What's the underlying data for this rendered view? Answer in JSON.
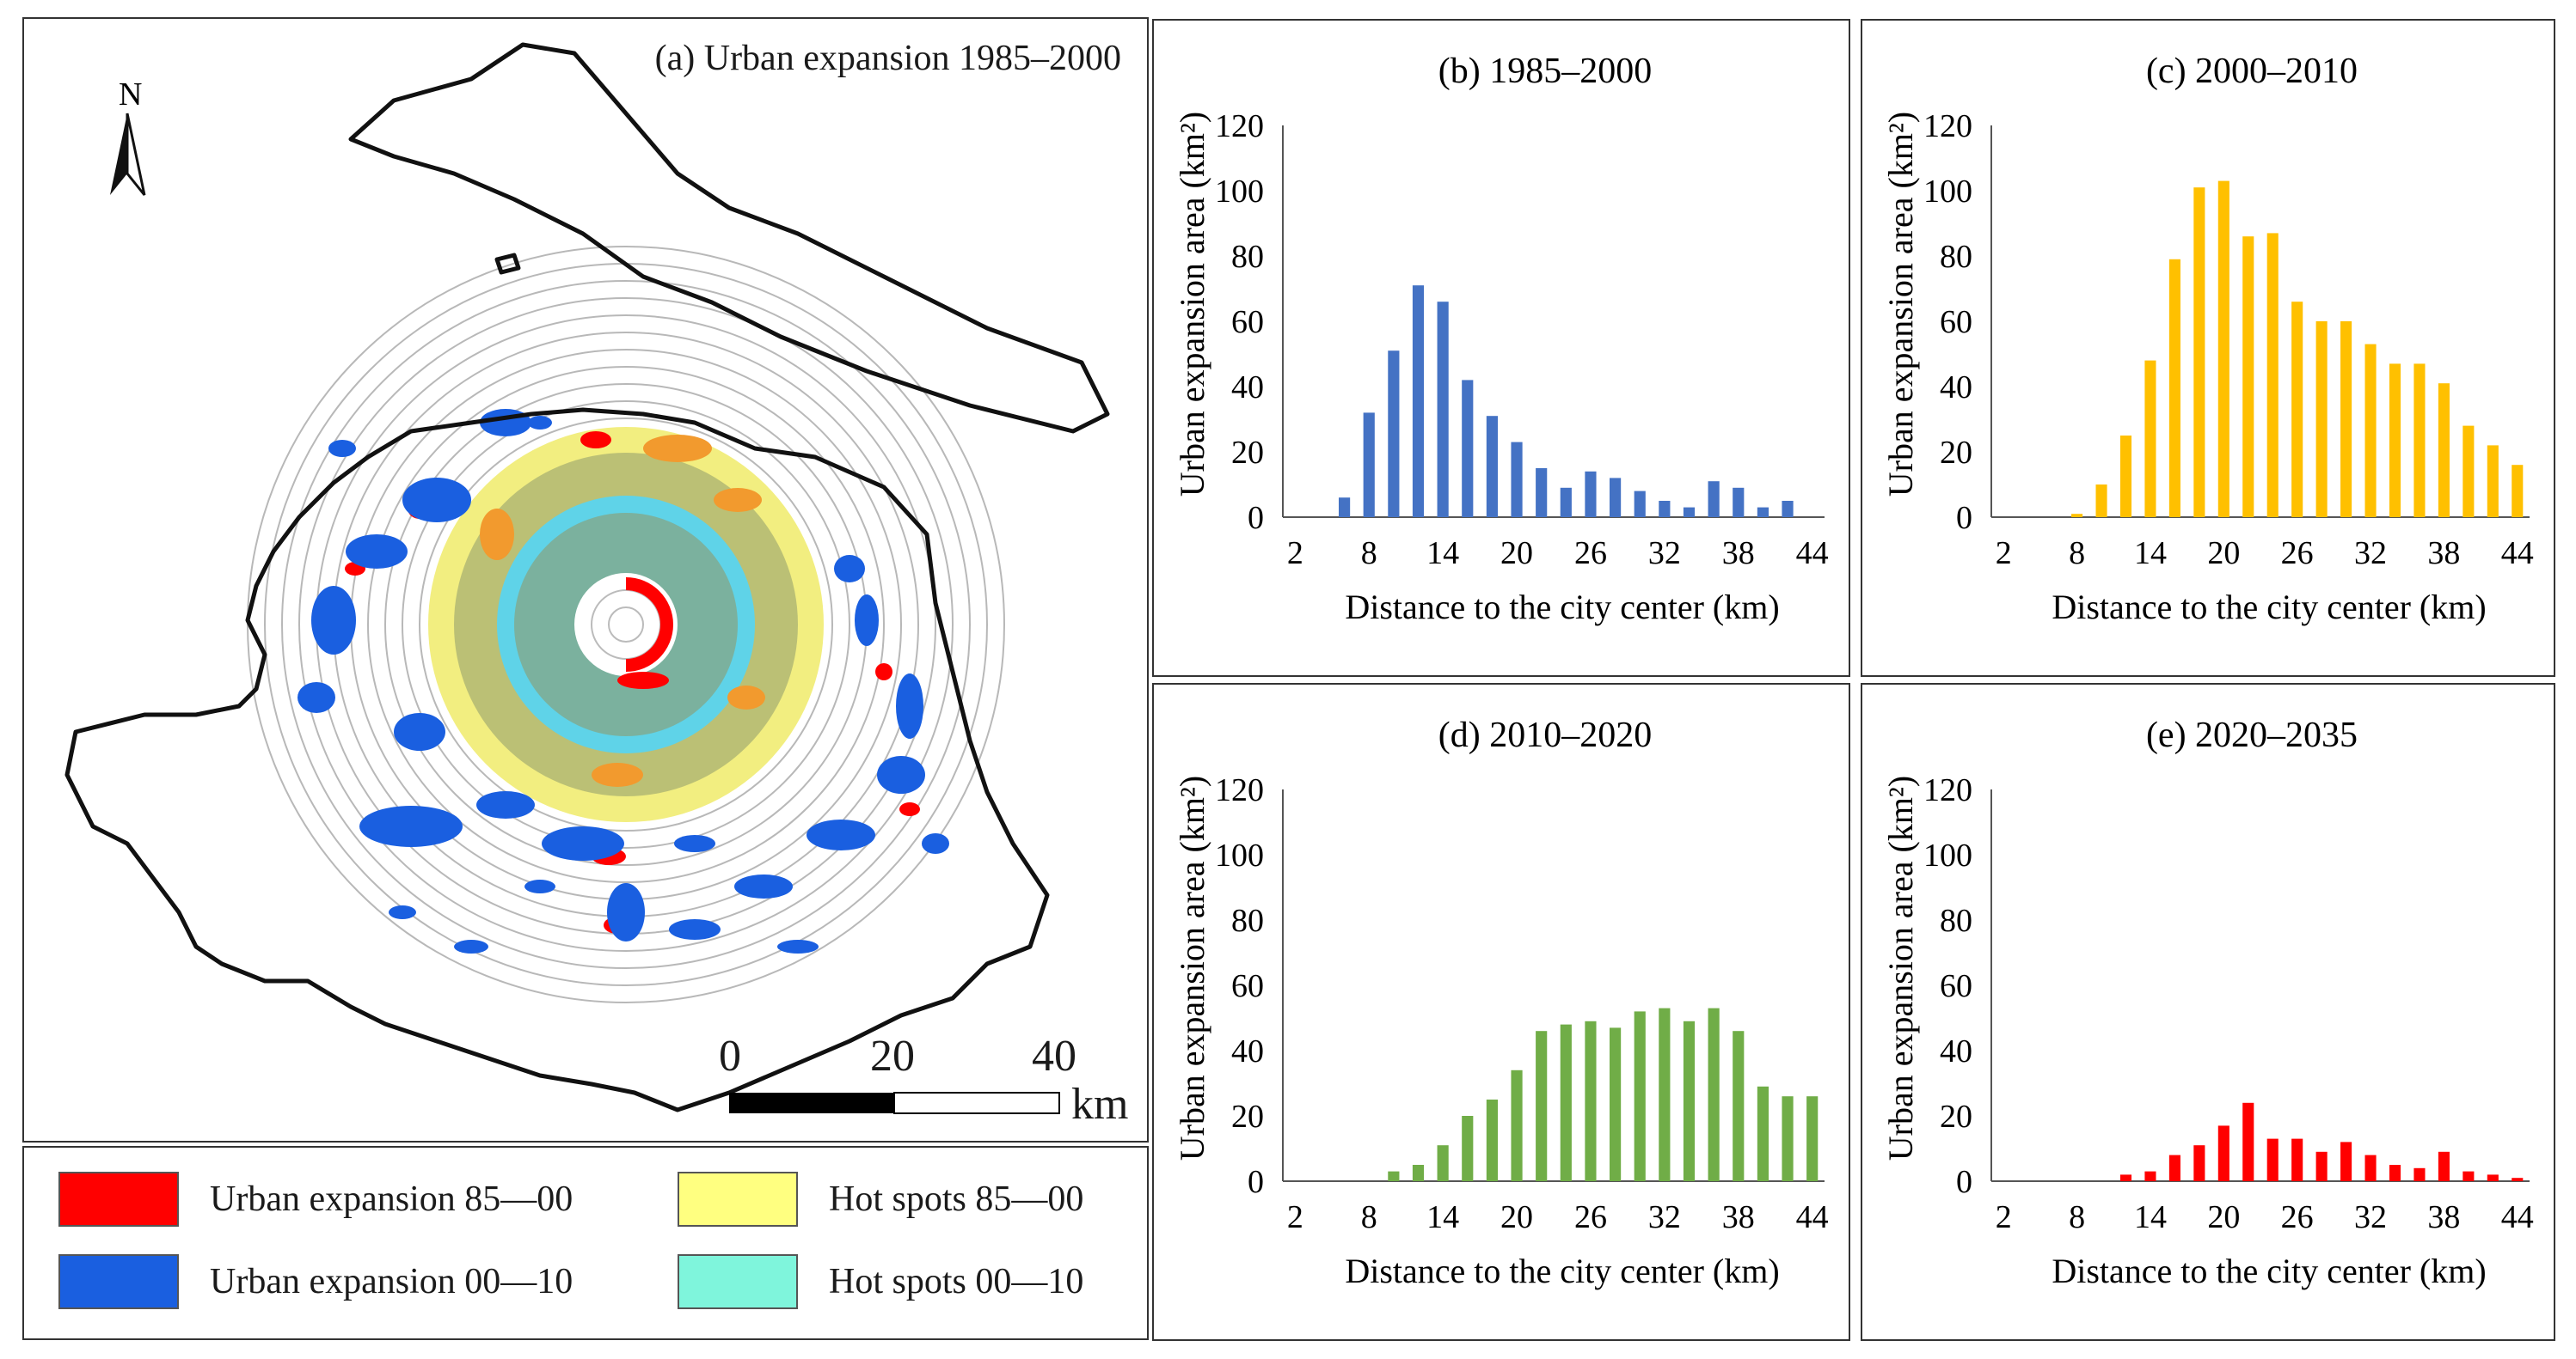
{
  "map": {
    "title": "(a) Urban expansion 1985–2000",
    "north_label": "N",
    "scale": {
      "ticks": [
        "0",
        "20",
        "40"
      ],
      "unit": "km"
    }
  },
  "legend": {
    "items": [
      {
        "label": "Urban expansion 85—00",
        "color": "#ff0000"
      },
      {
        "label": "Urban expansion 00—10",
        "color": "#1a5fe0"
      },
      {
        "label": "Hot spots 85—00",
        "color": "#ffff80"
      },
      {
        "label": "Hot spots 00—10",
        "color": "#7ff5dc"
      }
    ]
  },
  "colors": {
    "ring": "#b8b8b8",
    "hot_yellow": "#f2ee80",
    "hot_cyan": "#5fd3e8",
    "olive": "#8e9b6c",
    "orange": "#f29a2e",
    "red": "#ff0000",
    "blue": "#1a5fe0"
  },
  "chart_data": [
    {
      "type": "bar",
      "title": "(b) 1985–2000",
      "xlabel": "Distance to the city center (km)",
      "ylabel": "Urban expansion area (km²)",
      "ylim": [
        0,
        120
      ],
      "yticks": [
        0,
        20,
        40,
        60,
        80,
        100,
        120
      ],
      "xtick_labels": [
        "2",
        "8",
        "14",
        "20",
        "26",
        "32",
        "38",
        "44"
      ],
      "categories": [
        2,
        4,
        6,
        8,
        10,
        12,
        14,
        16,
        18,
        20,
        22,
        24,
        26,
        28,
        30,
        32,
        34,
        36,
        38,
        40,
        42,
        44
      ],
      "values": [
        0,
        0,
        6,
        32,
        51,
        71,
        66,
        42,
        31,
        23,
        15,
        9,
        14,
        12,
        8,
        5,
        3,
        11,
        9,
        3,
        5,
        0
      ],
      "color": "#4472c4"
    },
    {
      "type": "bar",
      "title": "(c) 2000–2010",
      "xlabel": "Distance to the city center (km)",
      "ylabel": "Urban expansion area (km²)",
      "ylim": [
        0,
        120
      ],
      "yticks": [
        0,
        20,
        40,
        60,
        80,
        100,
        120
      ],
      "xtick_labels": [
        "2",
        "8",
        "14",
        "20",
        "26",
        "32",
        "38",
        "44"
      ],
      "categories": [
        2,
        4,
        6,
        8,
        10,
        12,
        14,
        16,
        18,
        20,
        22,
        24,
        26,
        28,
        30,
        32,
        34,
        36,
        38,
        40,
        42,
        44
      ],
      "values": [
        0,
        0,
        0,
        1,
        10,
        25,
        48,
        79,
        101,
        103,
        86,
        87,
        66,
        60,
        60,
        53,
        47,
        47,
        41,
        28,
        22,
        16
      ],
      "color": "#ffc000"
    },
    {
      "type": "bar",
      "title": "(d) 2010–2020",
      "xlabel": "Distance to the city center (km)",
      "ylabel": "Urban expansion area (km²)",
      "ylim": [
        0,
        120
      ],
      "yticks": [
        0,
        20,
        40,
        60,
        80,
        100,
        120
      ],
      "xtick_labels": [
        "2",
        "8",
        "14",
        "20",
        "26",
        "32",
        "38",
        "44"
      ],
      "categories": [
        2,
        4,
        6,
        8,
        10,
        12,
        14,
        16,
        18,
        20,
        22,
        24,
        26,
        28,
        30,
        32,
        34,
        36,
        38,
        40,
        42,
        44
      ],
      "values": [
        0,
        0,
        0,
        0,
        3,
        5,
        11,
        20,
        25,
        34,
        46,
        48,
        49,
        47,
        52,
        53,
        49,
        53,
        46,
        29,
        26,
        26
      ],
      "color": "#70ad47"
    },
    {
      "type": "bar",
      "title": "(e) 2020–2035",
      "xlabel": "Distance to the city center (km)",
      "ylabel": "Urban expansion area (km²)",
      "ylim": [
        0,
        120
      ],
      "yticks": [
        0,
        20,
        40,
        60,
        80,
        100,
        120
      ],
      "xtick_labels": [
        "2",
        "8",
        "14",
        "20",
        "26",
        "32",
        "38",
        "44"
      ],
      "categories": [
        2,
        4,
        6,
        8,
        10,
        12,
        14,
        16,
        18,
        20,
        22,
        24,
        26,
        28,
        30,
        32,
        34,
        36,
        38,
        40,
        42,
        44
      ],
      "values": [
        0,
        0,
        0,
        0,
        0,
        2,
        3,
        8,
        11,
        17,
        24,
        13,
        13,
        9,
        12,
        8,
        5,
        4,
        9,
        3,
        2,
        1
      ],
      "color": "#ff0000"
    }
  ]
}
